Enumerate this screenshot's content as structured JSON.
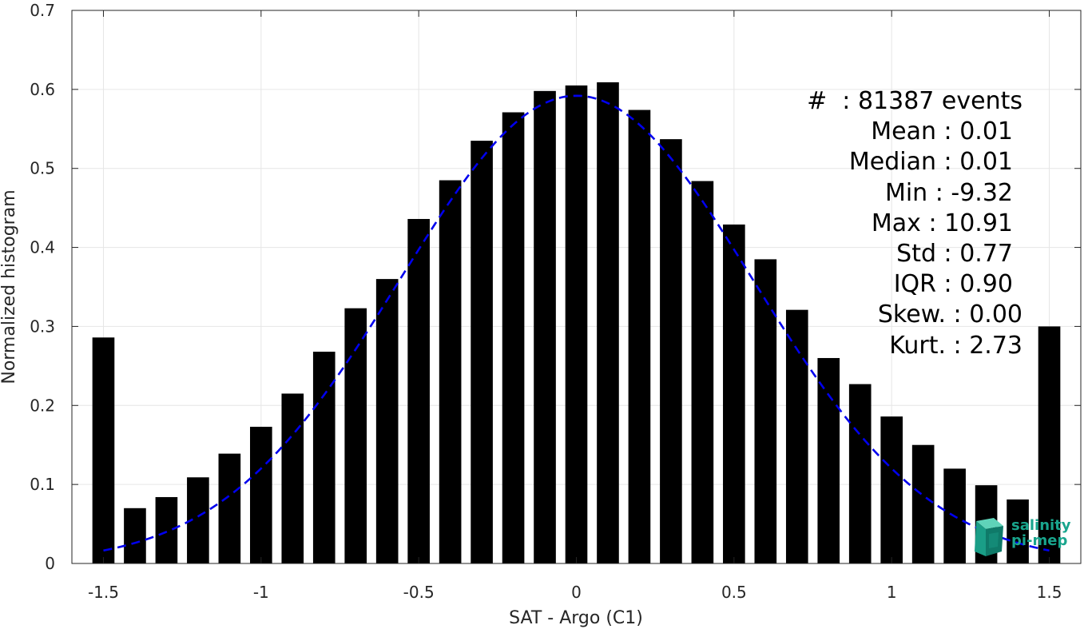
{
  "chart_data": {
    "type": "bar",
    "xlabel": "SAT - Argo (C1)",
    "ylabel": "Normalized histogram",
    "xlim": [
      -1.6,
      1.6
    ],
    "ylim": [
      0,
      0.7
    ],
    "xticks": [
      -1.5,
      -1,
      -0.5,
      0,
      0.5,
      1,
      1.5
    ],
    "xtick_labels": [
      "-1.5",
      "-1",
      "-0.5",
      "0",
      "0.5",
      "1",
      "1.5"
    ],
    "yticks": [
      0,
      0.1,
      0.2,
      0.3,
      0.4,
      0.5,
      0.6,
      0.7
    ],
    "ytick_labels": [
      "0",
      "0.1",
      "0.2",
      "0.3",
      "0.4",
      "0.5",
      "0.6",
      "0.7"
    ],
    "grid": true,
    "bar_width": 0.07,
    "bar_color": "#000000",
    "x": [
      -1.5,
      -1.4,
      -1.3,
      -1.2,
      -1.1,
      -1.0,
      -0.9,
      -0.8,
      -0.7,
      -0.6,
      -0.5,
      -0.4,
      -0.3,
      -0.2,
      -0.1,
      0.0,
      0.1,
      0.2,
      0.3,
      0.4,
      0.5,
      0.6,
      0.7,
      0.8,
      0.9,
      1.0,
      1.1,
      1.2,
      1.3,
      1.4,
      1.5
    ],
    "values": [
      0.286,
      0.07,
      0.084,
      0.109,
      0.139,
      0.173,
      0.215,
      0.268,
      0.323,
      0.36,
      0.436,
      0.485,
      0.535,
      0.571,
      0.598,
      0.605,
      0.609,
      0.574,
      0.537,
      0.484,
      0.429,
      0.385,
      0.321,
      0.26,
      0.227,
      0.186,
      0.15,
      0.12,
      0.099,
      0.081,
      0.3
    ],
    "fit": {
      "type": "gaussian",
      "color": "#0000ee",
      "style": "dashed",
      "mean": 0.0,
      "peak": 0.592,
      "sigma": 0.56,
      "x_range": [
        -1.5,
        1.5
      ]
    },
    "annotations": [
      "#  : 81387 events",
      "Mean : 0.01",
      "Median : 0.01",
      "Min : -9.32",
      "Max : 10.91",
      "Std : 0.77",
      "IQR : 0.90",
      "Skew. : 0.00",
      "Kurt. : 2.73"
    ]
  },
  "logo": {
    "line1": "salinity",
    "line2": "pi-mep",
    "color": "#19a58d"
  }
}
